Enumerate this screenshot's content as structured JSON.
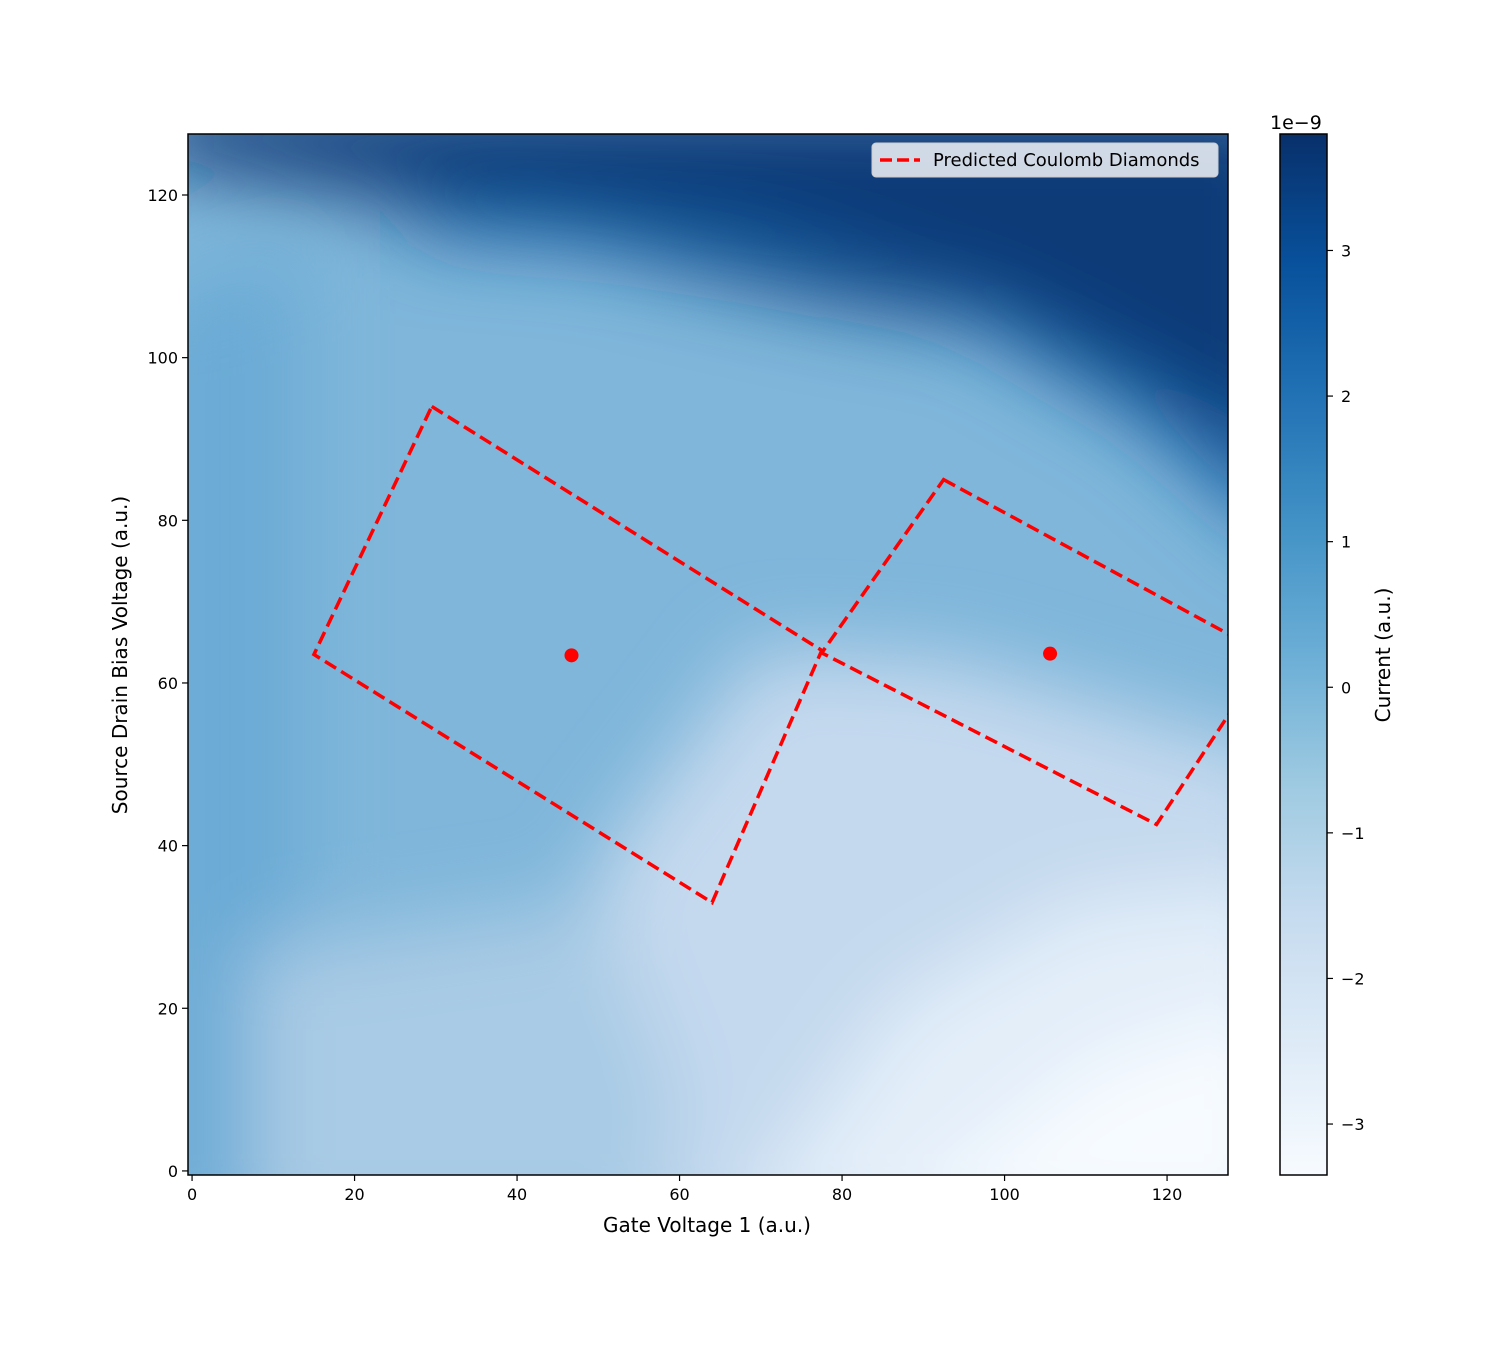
{
  "chart_data": {
    "type": "heatmap",
    "title": "",
    "xlabel": "Gate Voltage 1 (a.u.)",
    "ylabel": "Source Drain Bias Voltage (a.u.)",
    "xlim": [
      -0.5,
      127.5
    ],
    "ylim": [
      -0.5,
      127.5
    ],
    "x_ticks": [
      0,
      20,
      40,
      60,
      80,
      100,
      120
    ],
    "y_ticks": [
      0,
      20,
      40,
      60,
      80,
      100,
      120
    ],
    "colormap": "Blues",
    "colorbar": {
      "label": "Current (a.u.)",
      "exponent_label": "1e−9",
      "range": [
        -3.35,
        3.8
      ],
      "ticks": [
        -3,
        -2,
        -1,
        0,
        1,
        2,
        3
      ],
      "tick_labels": [
        "−3",
        "−2",
        "−1",
        "0",
        "1",
        "2",
        "3"
      ]
    },
    "legend": {
      "position": "top-right",
      "entries": [
        {
          "label": "Predicted Coulomb Diamonds",
          "color": "#ff0000",
          "style": "dashed"
        }
      ]
    },
    "diamonds": [
      {
        "vertices": [
          [
            29.5,
            94
          ],
          [
            77.5,
            64
          ],
          [
            64,
            33
          ],
          [
            15,
            63.5
          ]
        ],
        "center": [
          46.7,
          63.4
        ],
        "color": "#ff0000"
      },
      {
        "vertices": [
          [
            92.5,
            85
          ],
          [
            128.5,
            65.5
          ],
          [
            128.5,
            57.5
          ],
          [
            118.7,
            42.6
          ],
          [
            77.5,
            63.7
          ]
        ],
        "center": [
          105.6,
          63.6
        ],
        "color": "#ff0000"
      }
    ]
  }
}
